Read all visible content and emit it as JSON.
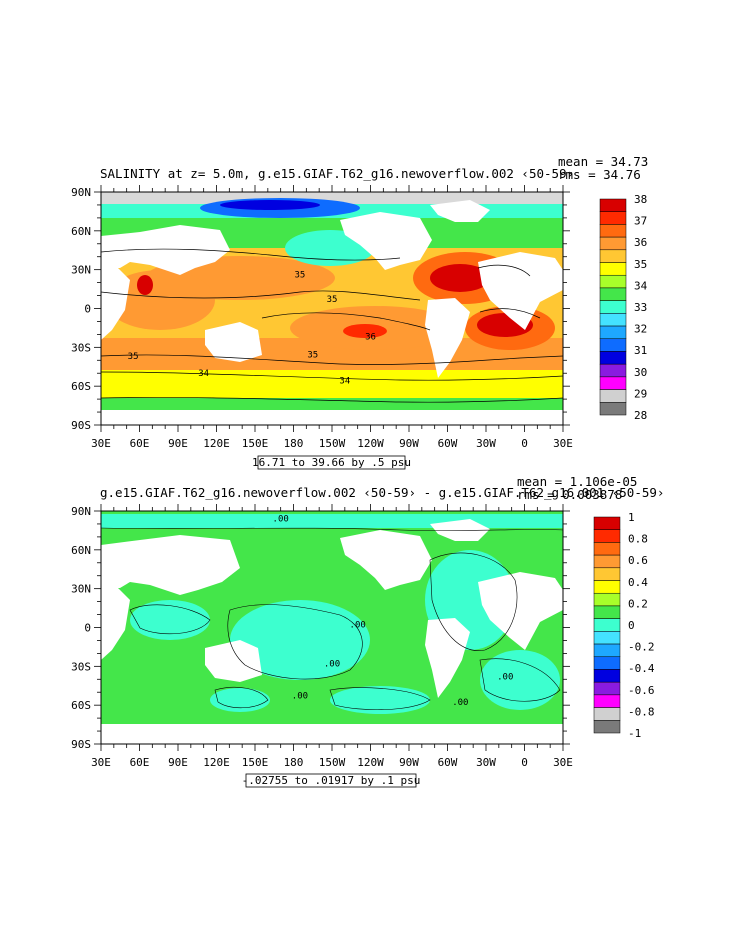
{
  "panels": [
    {
      "title": "SALINITY at z=   5.0m, g.e15.GIAF.T62_g16.newoverflow.002 ‹50-59›",
      "mean_label": "mean = 34.73",
      "rms_label": "rms = 34.76",
      "range_label": "16.71 to 39.66 by .5 psu",
      "colorbar": {
        "labels": [
          "38",
          "37",
          "36",
          "35",
          "34",
          "33",
          "32",
          "31",
          "30",
          "29",
          "28"
        ],
        "colors": [
          "#d80000",
          "#ff2a00",
          "#ff6a10",
          "#ff9a33",
          "#ffc733",
          "#ffff00",
          "#a8ff2a",
          "#44e64a",
          "#3dffcf",
          "#44e2ff",
          "#1ea8ff",
          "#0e6cff",
          "#0000e0",
          "#8a1be0",
          "#ff00ff",
          "#d0d0d0",
          "#7a7a7a"
        ]
      },
      "contour_labels": [
        {
          "text": "35",
          "lon": -175,
          "lat": 24
        },
        {
          "text": "35",
          "lon": -150,
          "lat": 5
        },
        {
          "text": "36",
          "lon": -120,
          "lat": -24
        },
        {
          "text": "35",
          "lon": 55,
          "lat": -39
        },
        {
          "text": "35",
          "lon": -165,
          "lat": -38
        },
        {
          "text": "34",
          "lon": 110,
          "lat": -52
        },
        {
          "text": "34",
          "lon": -140,
          "lat": -58
        }
      ]
    },
    {
      "title": "g.e15.GIAF.T62_g16.newoverflow.002 ‹50-59› - g.e15.GIAF.T62_g16.001 ‹50-59›",
      "mean_label": "mean = 1.106e-05",
      "rms_label": "rms = 0.003878",
      "range_label": "-.02755 to .01917 by .1 psu",
      "colorbar": {
        "labels": [
          "1",
          "0.8",
          "0.6",
          "0.4",
          "0.2",
          "0",
          "-0.2",
          "-0.4",
          "-0.6",
          "-0.8",
          "-1"
        ],
        "colors": [
          "#d80000",
          "#ff2a00",
          "#ff6a10",
          "#ff9a33",
          "#ffc733",
          "#ffff00",
          "#a8ff2a",
          "#44e64a",
          "#3dffcf",
          "#44e2ff",
          "#1ea8ff",
          "#0e6cff",
          "#0000e0",
          "#8a1be0",
          "#ff00ff",
          "#d0d0d0",
          "#7a7a7a"
        ]
      },
      "contour_labels": [
        {
          "text": ".00",
          "lon": -130,
          "lat": 0
        },
        {
          "text": ".00",
          "lon": -150,
          "lat": -30
        },
        {
          "text": ".00",
          "lon": -175,
          "lat": -55
        },
        {
          "text": ".00",
          "lon": -50,
          "lat": -60
        },
        {
          "text": ".00",
          "lon": -15,
          "lat": -40
        },
        {
          "text": ".00",
          "lon": 170,
          "lat": 82
        }
      ]
    }
  ],
  "axes": {
    "x_labels": [
      "30E",
      "60E",
      "90E",
      "120E",
      "150E",
      "180",
      "150W",
      "120W",
      "90W",
      "60W",
      "30W",
      "0",
      "30E"
    ],
    "y_labels": [
      "90N",
      "60N",
      "30N",
      "0",
      "30S",
      "60S",
      "90S"
    ]
  },
  "colors": {
    "ocean_fill_map1": "#ffb347",
    "ocean_fill_map2": "#44e64a",
    "land": "#ffffff"
  }
}
